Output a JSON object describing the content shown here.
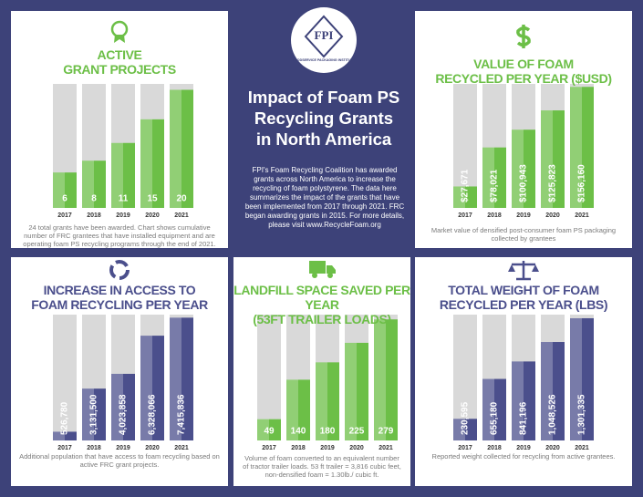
{
  "header": {
    "logo": "FPI",
    "logo_caption": "FOODSERVICE PACKAGING INSTITUTE",
    "title": [
      "Impact of Foam PS",
      "Recycling Grants",
      "in North America"
    ],
    "text": "FPI's Foam Recycling Coalition has awarded grants across North America to increase the recycling of foam polystyrene. The data here summarizes the impact of the grants that have been implemented from 2017 through 2021. FRC began awarding grants in 2015. For more details, please visit www.RecycleFoam.org"
  },
  "chart_data": [
    {
      "type": "bar",
      "title": [
        "ACTIVE",
        "GRANT PROJECTS"
      ],
      "categories": [
        "2017",
        "2018",
        "2019",
        "2020",
        "2021"
      ],
      "values": [
        6,
        8,
        11,
        15,
        20
      ],
      "color": "#6cbf47",
      "ylim": [
        0,
        21
      ],
      "note": "24 total grants have been awarded. Chart shows cumulative number of FRC grantees that have installed equipment and are operating foam PS recycling programs through the end of 2021."
    },
    {
      "type": "bar",
      "title": [
        "VALUE OF FOAM",
        "RECYCLED PER YEAR ($USD)"
      ],
      "categories": [
        "2017",
        "2018",
        "2019",
        "2020",
        "2021"
      ],
      "values": [
        27671,
        78021,
        100943,
        125823,
        156160
      ],
      "value_labels": [
        "$27,671",
        "$78,021",
        "$100,943",
        "$125,823",
        "$156,160"
      ],
      "color": "#6cbf47",
      "ylim": [
        0,
        160000
      ],
      "note": "Market value of densified post-consumer foam PS packaging collected by grantees"
    },
    {
      "type": "bar",
      "title": [
        "INCREASE IN ACCESS TO",
        "FOAM RECYCLING PER YEAR"
      ],
      "categories": [
        "2017",
        "2018",
        "2019",
        "2020",
        "2021"
      ],
      "values": [
        526780,
        3131500,
        4023858,
        6328066,
        7415836
      ],
      "value_labels": [
        "526,780",
        "3,131,500",
        "4,023,858",
        "6,328,066",
        "7,415,836"
      ],
      "color": "#4b4f8c",
      "ylim": [
        0,
        7600000
      ],
      "note": "Additional population that have access to foam recycling based on active FRC grant projects."
    },
    {
      "type": "bar",
      "title": [
        "LANDFILL SPACE SAVED PER YEAR",
        "(53FT TRAILER LOADS)"
      ],
      "categories": [
        "2017",
        "2018",
        "2019",
        "2020",
        "2021"
      ],
      "values": [
        49,
        140,
        180,
        225,
        279
      ],
      "color": "#6cbf47",
      "ylim": [
        0,
        290
      ],
      "note": "Volume of foam converted to an equivalent number of tractor trailer loads. 53 ft trailer = 3,816 cubic feet, non-densified foam = 1.30lb./ cubic ft."
    },
    {
      "type": "bar",
      "title": [
        "TOTAL WEIGHT OF FOAM",
        "RECYCLED PER YEAR (LBS)"
      ],
      "categories": [
        "2017",
        "2018",
        "2019",
        "2020",
        "2021"
      ],
      "values": [
        230595,
        655180,
        841196,
        1048526,
        1301335
      ],
      "value_labels": [
        "230,595",
        "655,180",
        "841,196",
        "1,048,526",
        "1,301,335"
      ],
      "color": "#4b4f8c",
      "ylim": [
        0,
        1340000
      ],
      "note": "Reported weight collected for recycling from active grantees."
    }
  ]
}
